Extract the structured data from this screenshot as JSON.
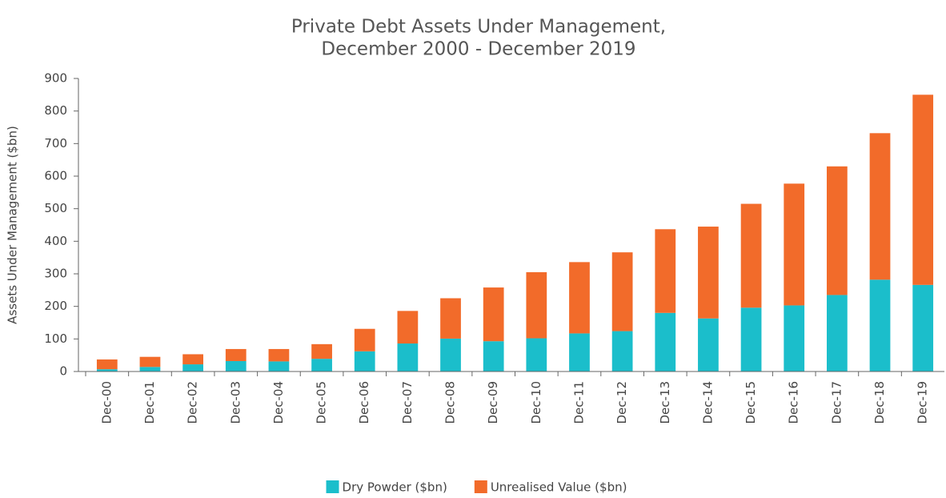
{
  "chart_data": {
    "type": "stacked_bar",
    "title": [
      "Private Debt Assets Under Management,",
      "December 2000 - December 2019"
    ],
    "y_label": "Assets Under Management ($bn)",
    "categories": [
      "Dec-00",
      "Dec-01",
      "Dec-02",
      "Dec-03",
      "Dec-04",
      "Dec-05",
      "Dec-06",
      "Dec-07",
      "Dec-08",
      "Dec-09",
      "Dec-10",
      "Dec-11",
      "Dec-12",
      "Dec-13",
      "Dec-14",
      "Dec-15",
      "Dec-16",
      "Dec-17",
      "Dec-18",
      "Dec-19"
    ],
    "series": [
      {
        "name": "Dry Powder ($bn)",
        "color": "#1bbecb",
        "values": [
          7,
          14,
          22,
          32,
          31,
          39,
          62,
          86,
          101,
          93,
          102,
          117,
          124,
          180,
          163,
          196,
          203,
          235,
          282,
          266
        ]
      },
      {
        "name": "Unrealised Value ($bn)",
        "color": "#f26b2a",
        "values": [
          30,
          31,
          31,
          37,
          38,
          45,
          69,
          100,
          124,
          165,
          203,
          219,
          242,
          257,
          282,
          319,
          374,
          395,
          450,
          584
        ]
      }
    ],
    "ylim": [
      0,
      900
    ],
    "yticks": [
      0,
      100,
      200,
      300,
      400,
      500,
      600,
      700,
      800,
      900
    ],
    "grid": false,
    "legend": "bottom"
  }
}
